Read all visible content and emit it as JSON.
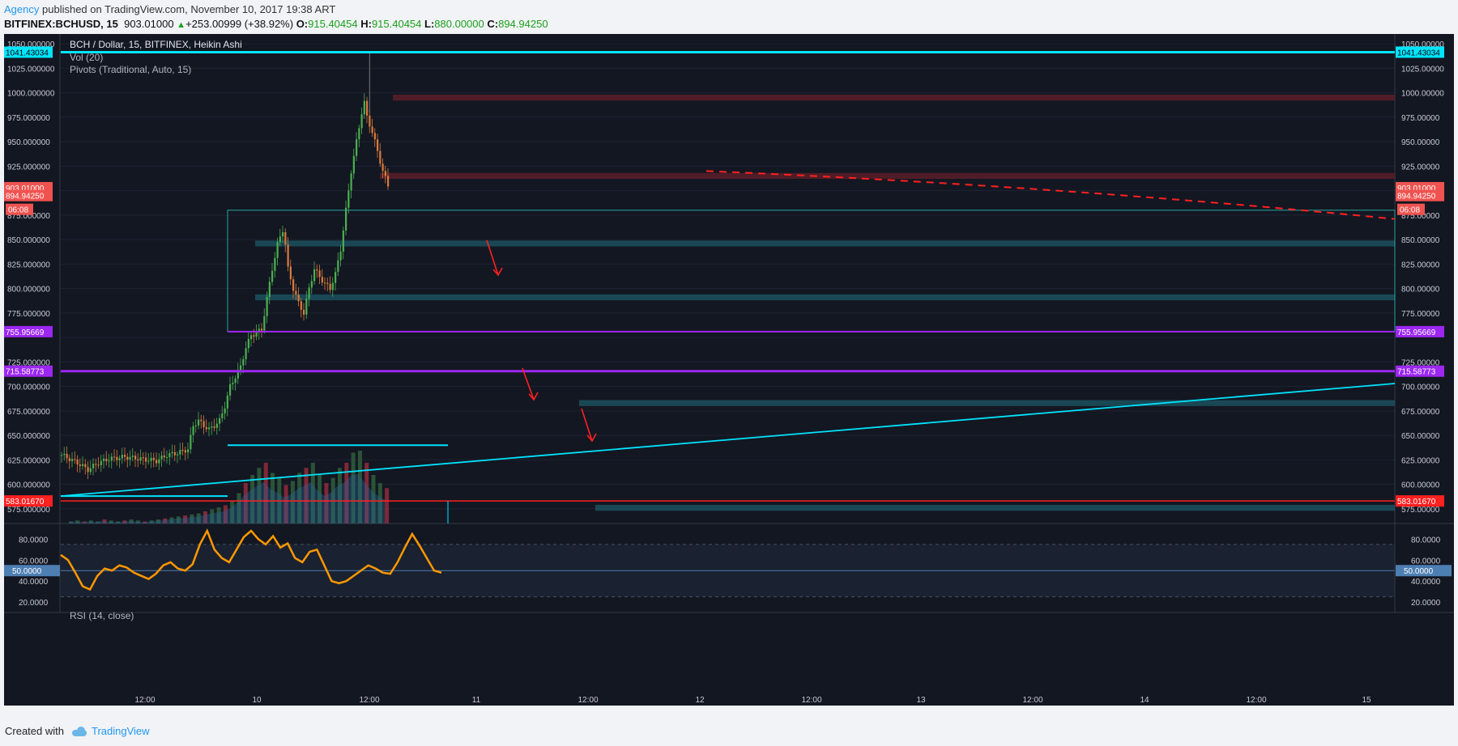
{
  "header": {
    "author": "Agency",
    "published_text": "published on TradingView.com, November 10, 2017 19:38 ART",
    "symbol": "BITFINEX:BCHUSD, 15",
    "last_price": "903.01000",
    "change_arrow": "▲",
    "change": "+253.00999 (+38.92%)",
    "o_label": "O:",
    "o_value": "915.40454",
    "h_label": "H:",
    "h_value": "915.40454",
    "l_label": "L:",
    "l_value": "880.00000",
    "c_label": "C:",
    "c_value": "894.94250"
  },
  "legend": {
    "title": "BCH / Dollar, 15, BITFINEX, Heikin Ashi",
    "volume": "Vol (20)",
    "pivots": "Pivots (Traditional, Auto, 15)",
    "rsi": "RSI (14, close)"
  },
  "footer": {
    "created_with": "Created with",
    "brand": "TradingView",
    "brand_icon": "tradingview-cloud-icon"
  },
  "colors": {
    "background": "#131722",
    "grid": "#1f2333",
    "axis_text": "#c8cad2",
    "up": "#4caf50",
    "down": "#d97b3c",
    "cyan": "#00e5ff",
    "purple": "#9c27f0",
    "red": "#ff2020",
    "rsi_line": "#ff9800",
    "zone_teal": "#1c5a66",
    "zone_red": "#5a1e28"
  },
  "price_axis": {
    "ticks": [
      "1050.000000",
      "1025.000000",
      "1000.000000",
      "975.000000",
      "950.000000",
      "925.000000",
      "875.000000",
      "850.000000",
      "825.000000",
      "800.000000",
      "775.000000",
      "725.000000",
      "700.000000",
      "675.000000",
      "650.000000",
      "625.000000",
      "600.000000",
      "575.000000"
    ],
    "ticks_right": [
      "1050.00000",
      "1025.00000",
      "1000.00000",
      "975.00000",
      "950.00000",
      "925.00000",
      "875.00000",
      "850.00000",
      "825.00000",
      "800.00000",
      "775.00000",
      "725.00000",
      "700.00000",
      "675.00000",
      "650.00000",
      "625.00000",
      "600.00000",
      "575.00000"
    ],
    "labels_left": [
      {
        "text": "1041.43034",
        "color": "#00e5ff",
        "fg": "#000000"
      },
      {
        "text": "903.01000",
        "color": "#ef5350",
        "fg": "#ffffff"
      },
      {
        "text": "894.94250",
        "color": "#ef5350",
        "fg": "#ffffff"
      },
      {
        "text": "06:08",
        "color": "#ef5350",
        "fg": "#ffffff"
      },
      {
        "text": "755.95669",
        "color": "#9c27f0",
        "fg": "#ffffff"
      },
      {
        "text": "715.58773",
        "color": "#9c27f0",
        "fg": "#ffffff"
      },
      {
        "text": "583.01670",
        "color": "#ff2020",
        "fg": "#ffffff"
      }
    ],
    "labels_right": [
      {
        "text": "1041.43034",
        "color": "#00e5ff",
        "fg": "#000000"
      },
      {
        "text": "903.01000",
        "color": "#ef5350",
        "fg": "#ffffff"
      },
      {
        "text": "894.94250",
        "color": "#ef5350",
        "fg": "#ffffff"
      },
      {
        "text": "06:08",
        "color": "#ef5350",
        "fg": "#ffffff"
      },
      {
        "text": "755.95669",
        "color": "#9c27f0",
        "fg": "#ffffff"
      },
      {
        "text": "715.58773",
        "color": "#9c27f0",
        "fg": "#ffffff"
      },
      {
        "text": "583.01670",
        "color": "#ff2020",
        "fg": "#ffffff"
      }
    ]
  },
  "rsi_axis": {
    "ticks": [
      "80.0000",
      "60.0000",
      "40.0000",
      "20.0000"
    ],
    "ticks_right": [
      "80.0000",
      "60.0000",
      "40.0000",
      "20.0000"
    ],
    "level_label": "50.0000"
  },
  "time_axis": {
    "labels": [
      "12:00",
      "10",
      "12:00",
      "11",
      "12:00",
      "12",
      "12:00",
      "13",
      "12:00",
      "14",
      "12:00",
      "15"
    ]
  },
  "drawings": {
    "resistance_level": 1041.43034,
    "supply_zones": [
      {
        "from": 992,
        "to": 998
      },
      {
        "from": 912,
        "to": 918
      }
    ],
    "demand_zones": [
      {
        "from": 843,
        "to": 849
      },
      {
        "from": 788,
        "to": 794
      },
      {
        "from": 680,
        "to": 686
      },
      {
        "from": 573,
        "to": 579
      }
    ],
    "pivot_lines": [
      755.95669,
      715.58773
    ],
    "support_line": 583.0167
  },
  "chart_data": {
    "type": "candlestick",
    "title": "BCH / Dollar, 15, BITFINEX, Heikin Ashi",
    "ylim": [
      560,
      1060
    ],
    "rsi_ylim": [
      10,
      95
    ],
    "close_path": [
      [
        0,
        630
      ],
      [
        6,
        622
      ],
      [
        10,
        615
      ],
      [
        14,
        622
      ],
      [
        18,
        626
      ],
      [
        24,
        628
      ],
      [
        30,
        626
      ],
      [
        36,
        624
      ],
      [
        40,
        630
      ],
      [
        44,
        632
      ],
      [
        48,
        636
      ],
      [
        50,
        660
      ],
      [
        52,
        665
      ],
      [
        54,
        660
      ],
      [
        56,
        656
      ],
      [
        58,
        660
      ],
      [
        60,
        665
      ],
      [
        62,
        680
      ],
      [
        64,
        700
      ],
      [
        66,
        710
      ],
      [
        68,
        720
      ],
      [
        70,
        740
      ],
      [
        72,
        752
      ],
      [
        74,
        755
      ],
      [
        76,
        758
      ],
      [
        78,
        790
      ],
      [
        80,
        820
      ],
      [
        82,
        845
      ],
      [
        84,
        860
      ],
      [
        85,
        845
      ],
      [
        86,
        820
      ],
      [
        88,
        800
      ],
      [
        90,
        785
      ],
      [
        92,
        775
      ],
      [
        94,
        800
      ],
      [
        96,
        820
      ],
      [
        98,
        812
      ],
      [
        100,
        805
      ],
      [
        102,
        800
      ],
      [
        104,
        815
      ],
      [
        106,
        840
      ],
      [
        108,
        880
      ],
      [
        110,
        920
      ],
      [
        112,
        950
      ],
      [
        114,
        980
      ],
      [
        115,
        990
      ],
      [
        116,
        975
      ],
      [
        118,
        960
      ],
      [
        120,
        940
      ],
      [
        122,
        920
      ],
      [
        124,
        905
      ],
      [
        125,
        895
      ]
    ],
    "rsi": [
      65,
      60,
      48,
      35,
      32,
      45,
      52,
      50,
      55,
      53,
      48,
      45,
      42,
      47,
      55,
      58,
      52,
      50,
      56,
      75,
      88,
      70,
      62,
      58,
      70,
      82,
      88,
      80,
      75,
      83,
      72,
      76,
      62,
      58,
      68,
      70,
      55,
      40,
      38,
      40,
      45,
      50,
      55,
      52,
      48,
      47,
      58,
      72,
      85,
      74,
      62,
      50,
      48
    ],
    "volume": [
      2,
      3,
      2,
      3,
      2,
      4,
      3,
      2,
      3,
      4,
      3,
      2,
      3,
      4,
      5,
      6,
      7,
      8,
      9,
      10,
      12,
      14,
      16,
      18,
      22,
      30,
      40,
      48,
      55,
      60,
      50,
      45,
      38,
      42,
      50,
      55,
      60,
      48,
      40,
      45,
      55,
      60,
      70,
      72,
      60,
      48,
      40,
      35
    ]
  }
}
